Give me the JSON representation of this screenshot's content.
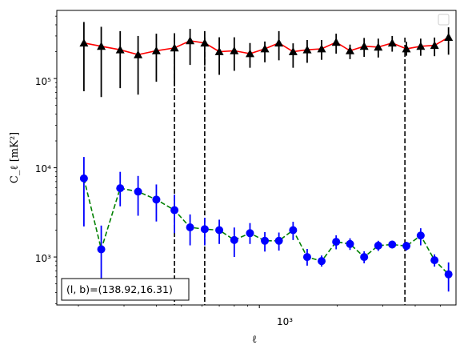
{
  "chart_data": {
    "type": "line",
    "title": "",
    "xlabel": "ℓ",
    "ylabel": "C_ℓ [mK²]",
    "xscale": "log",
    "yscale": "log",
    "xlim": [
      165,
      5750
    ],
    "ylim": [
      290,
      580000
    ],
    "x_major_tick": 1000,
    "x_major_tick_label": "10³",
    "y_major_ticks": [
      1000,
      10000,
      100000
    ],
    "y_major_tick_labels": [
      "10³",
      "10⁴",
      "10⁵"
    ],
    "grid": false,
    "legend": "top-right (empty)",
    "annotation": "(l, b)=(138.92,16.31)",
    "vertical_lines_x": [
      470,
      615,
      3650
    ],
    "x": [
      210,
      245,
      290,
      340,
      400,
      470,
      540,
      615,
      700,
      800,
      920,
      1050,
      1190,
      1350,
      1530,
      1740,
      1980,
      2240,
      2540,
      2880,
      3260,
      3700,
      4200,
      4750,
      5380
    ],
    "series": [
      {
        "marker": "triangle",
        "line_color": "#ff0000",
        "marker_color": "#000000",
        "y": [
          250000,
          230000,
          210000,
          185000,
          205000,
          220000,
          265000,
          250000,
          200000,
          205000,
          190000,
          215000,
          250000,
          200000,
          210000,
          215000,
          255000,
          205000,
          230000,
          225000,
          250000,
          215000,
          230000,
          235000,
          290000
        ],
        "y_low": [
          72000,
          62000,
          78000,
          66000,
          92000,
          82000,
          142000,
          140000,
          110000,
          122000,
          132000,
          152000,
          160000,
          132000,
          150000,
          162000,
          190000,
          165000,
          175000,
          172000,
          200000,
          180000,
          180000,
          178000,
          185000
        ],
        "y_high": [
          430000,
          380000,
          340000,
          300000,
          318000,
          322000,
          360000,
          340000,
          290000,
          290000,
          250000,
          260000,
          340000,
          248000,
          270000,
          270000,
          318000,
          240000,
          285000,
          280000,
          300000,
          258000,
          280000,
          288000,
          375000
        ]
      },
      {
        "marker": "circle",
        "line_color": "#008000",
        "marker_color": "#0000ff",
        "y": [
          7600,
          1220,
          5900,
          5400,
          4400,
          3350,
          2150,
          2050,
          2000,
          1550,
          1850,
          1520,
          1520,
          2000,
          1000,
          900,
          1480,
          1400,
          1000,
          1340,
          1380,
          1330,
          1740,
          920,
          640
        ],
        "y_low": [
          2200,
          560,
          3700,
          2900,
          2500,
          1850,
          1350,
          1350,
          1400,
          1000,
          1400,
          1150,
          1180,
          1550,
          800,
          780,
          1220,
          1200,
          850,
          1170,
          1250,
          1180,
          1350,
          780,
          410
        ],
        "y_high": [
          13200,
          2250,
          9000,
          8100,
          6500,
          5000,
          3000,
          2750,
          2620,
          2140,
          2400,
          1900,
          1880,
          2480,
          1230,
          1040,
          1750,
          1620,
          1160,
          1520,
          1520,
          1480,
          2100,
          1070,
          870
        ]
      }
    ]
  }
}
